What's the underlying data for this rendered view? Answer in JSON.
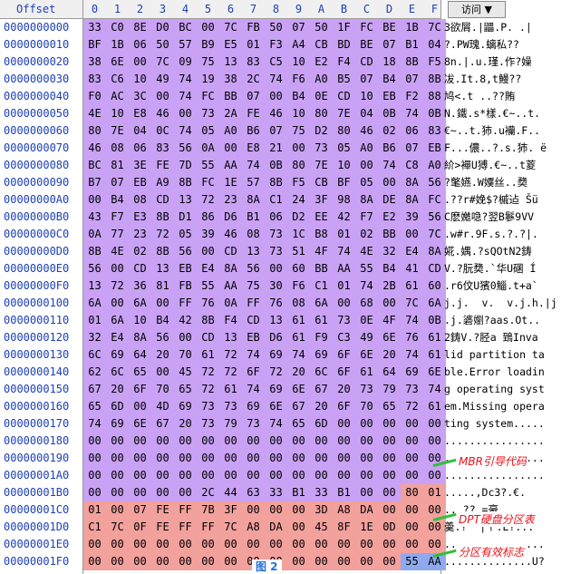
{
  "header": {
    "offset": "Offset",
    "columns": [
      "0",
      "1",
      "2",
      "3",
      "4",
      "5",
      "6",
      "7",
      "8",
      "9",
      "A",
      "B",
      "C",
      "D",
      "E",
      "F"
    ],
    "access": "访问 ▼"
  },
  "regions": [
    {
      "color": "#c9a2f5",
      "start": 0,
      "end": 445
    },
    {
      "color": "#f3a19d",
      "start": 446,
      "end": 509
    },
    {
      "color": "#8ea9ee",
      "start": 510,
      "end": 511
    }
  ],
  "rows": [
    {
      "offset": "0000000000",
      "bytes": [
        "33",
        "C0",
        "8E",
        "D0",
        "BC",
        "00",
        "7C",
        "FB",
        "50",
        "07",
        "50",
        "1F",
        "FC",
        "BE",
        "1B",
        "7C"
      ],
      "ascii": "3欲屑.|鼺.P. .|"
    },
    {
      "offset": "0000000010",
      "bytes": [
        "BF",
        "1B",
        "06",
        "50",
        "57",
        "B9",
        "E5",
        "01",
        "F3",
        "A4",
        "CB",
        "BD",
        "BE",
        "07",
        "B1",
        "04"
      ],
      "ascii": "?.PW瑰.螭私??"
    },
    {
      "offset": "0000000020",
      "bytes": [
        "38",
        "6E",
        "00",
        "7C",
        "09",
        "75",
        "13",
        "83",
        "C5",
        "10",
        "E2",
        "F4",
        "CD",
        "18",
        "8B",
        "F5"
      ],
      "ascii": "8n.|.u.瑾.作?嬠"
    },
    {
      "offset": "0000000030",
      "bytes": [
        "83",
        "C6",
        "10",
        "49",
        "74",
        "19",
        "38",
        "2C",
        "74",
        "F6",
        "A0",
        "B5",
        "07",
        "B4",
        "07",
        "8B"
      ],
      "ascii": "冹.It.8,t鰻??"
    },
    {
      "offset": "0000000040",
      "bytes": [
        "F0",
        "AC",
        "3C",
        "00",
        "74",
        "FC",
        "BB",
        "07",
        "00",
        "B4",
        "0E",
        "CD",
        "10",
        "EB",
        "F2",
        "88"
      ],
      "ascii": "鸠<.t ..??賄"
    },
    {
      "offset": "0000000050",
      "bytes": [
        "4E",
        "10",
        "E8",
        "46",
        "00",
        "73",
        "2A",
        "FE",
        "46",
        "10",
        "80",
        "7E",
        "04",
        "0B",
        "74",
        "0B"
      ],
      "ascii": "N.鐵.s*樣.€~..t."
    },
    {
      "offset": "0000000060",
      "bytes": [
        "80",
        "7E",
        "04",
        "0C",
        "74",
        "05",
        "A0",
        "B6",
        "07",
        "75",
        "D2",
        "80",
        "46",
        "02",
        "06",
        "83"
      ],
      "ascii": "€~..t.犻.u襽.F.."
    },
    {
      "offset": "0000000070",
      "bytes": [
        "46",
        "08",
        "06",
        "83",
        "56",
        "0A",
        "00",
        "E8",
        "21",
        "00",
        "73",
        "05",
        "A0",
        "B6",
        "07",
        "EB"
      ],
      "ascii": "F...儂..?.s.犻. ë"
    },
    {
      "offset": "0000000080",
      "bytes": [
        "BC",
        "81",
        "3E",
        "FE",
        "7D",
        "55",
        "AA",
        "74",
        "0B",
        "80",
        "7E",
        "10",
        "00",
        "74",
        "C8",
        "A0"
      ],
      "ascii": "紒>襌U猼.€~..t葼"
    },
    {
      "offset": "0000000090",
      "bytes": [
        "B7",
        "07",
        "EB",
        "A9",
        "8B",
        "FC",
        "1E",
        "57",
        "8B",
        "F5",
        "CB",
        "BF",
        "05",
        "00",
        "8A",
        "56"
      ],
      "ascii": "?氅嬿.W嬽丝..奦"
    },
    {
      "offset": "00000000A0",
      "bytes": [
        "00",
        "B4",
        "08",
        "CD",
        "13",
        "72",
        "23",
        "8A",
        "C1",
        "24",
        "3F",
        "98",
        "8A",
        "DE",
        "8A",
        "FC"
      ],
      "ascii": ".??r#娩$?槭迠 Šü"
    },
    {
      "offset": "00000000B0",
      "bytes": [
        "43",
        "F7",
        "E3",
        "8B",
        "D1",
        "86",
        "D6",
        "B1",
        "06",
        "D2",
        "EE",
        "42",
        "F7",
        "E2",
        "39",
        "56"
      ],
      "ascii": "C麽嬔喼?翌B鬖9VV"
    },
    {
      "offset": "00000000C0",
      "bytes": [
        "0A",
        "77",
        "23",
        "72",
        "05",
        "39",
        "46",
        "08",
        "73",
        "1C",
        "B8",
        "01",
        "02",
        "BB",
        "00",
        "7C"
      ],
      "ascii": ".w#r.9F.s.?.?|."
    },
    {
      "offset": "00000000D0",
      "bytes": [
        "8B",
        "4E",
        "02",
        "8B",
        "56",
        "00",
        "CD",
        "13",
        "73",
        "51",
        "4F",
        "74",
        "4E",
        "32",
        "E4",
        "8A"
      ],
      "ascii": "婲.媀.?sQOtN2鋳"
    },
    {
      "offset": "00000000E0",
      "bytes": [
        "56",
        "00",
        "CD",
        "13",
        "EB",
        "E4",
        "8A",
        "56",
        "00",
        "60",
        "BB",
        "AA",
        "55",
        "B4",
        "41",
        "CD"
      ],
      "ascii": "V.?朊奦.`华U碅 Í"
    },
    {
      "offset": "00000000F0",
      "bytes": [
        "13",
        "72",
        "36",
        "81",
        "FB",
        "55",
        "AA",
        "75",
        "30",
        "F6",
        "C1",
        "01",
        "74",
        "2B",
        "61",
        "60"
      ],
      "ascii": ".r6伩U獱0鯔.t+a`"
    },
    {
      "offset": "0000000100",
      "bytes": [
        "6A",
        "00",
        "6A",
        "00",
        "FF",
        "76",
        "0A",
        "FF",
        "76",
        "08",
        "6A",
        "00",
        "68",
        "00",
        "7C",
        "6A"
      ],
      "ascii": "j.j.  v.  v.j.h.|j"
    },
    {
      "offset": "0000000110",
      "bytes": [
        "01",
        "6A",
        "10",
        "B4",
        "42",
        "8B",
        "F4",
        "CD",
        "13",
        "61",
        "61",
        "73",
        "0E",
        "4F",
        "74",
        "0B"
      ],
      "ascii": ".j.碆嬼?aas.Ot.."
    },
    {
      "offset": "0000000120",
      "bytes": [
        "32",
        "E4",
        "8A",
        "56",
        "00",
        "CD",
        "13",
        "EB",
        "D6",
        "61",
        "F9",
        "C3",
        "49",
        "6E",
        "76",
        "61"
      ],
      "ascii": "2鋳V.?胫a 鵄Inva"
    },
    {
      "offset": "0000000130",
      "bytes": [
        "6C",
        "69",
        "64",
        "20",
        "70",
        "61",
        "72",
        "74",
        "69",
        "74",
        "69",
        "6F",
        "6E",
        "20",
        "74",
        "61"
      ],
      "ascii": "lid partition ta"
    },
    {
      "offset": "0000000140",
      "bytes": [
        "62",
        "6C",
        "65",
        "00",
        "45",
        "72",
        "72",
        "6F",
        "72",
        "20",
        "6C",
        "6F",
        "61",
        "64",
        "69",
        "6E"
      ],
      "ascii": "ble.Error loadin"
    },
    {
      "offset": "0000000150",
      "bytes": [
        "67",
        "20",
        "6F",
        "70",
        "65",
        "72",
        "61",
        "74",
        "69",
        "6E",
        "67",
        "20",
        "73",
        "79",
        "73",
        "74"
      ],
      "ascii": "g operating syst"
    },
    {
      "offset": "0000000160",
      "bytes": [
        "65",
        "6D",
        "00",
        "4D",
        "69",
        "73",
        "73",
        "69",
        "6E",
        "67",
        "20",
        "6F",
        "70",
        "65",
        "72",
        "61"
      ],
      "ascii": "em.Missing opera"
    },
    {
      "offset": "0000000170",
      "bytes": [
        "74",
        "69",
        "6E",
        "67",
        "20",
        "73",
        "79",
        "73",
        "74",
        "65",
        "6D",
        "00",
        "00",
        "00",
        "00",
        "00"
      ],
      "ascii": "ting system....."
    },
    {
      "offset": "0000000180",
      "bytes": [
        "00",
        "00",
        "00",
        "00",
        "00",
        "00",
        "00",
        "00",
        "00",
        "00",
        "00",
        "00",
        "00",
        "00",
        "00",
        "00"
      ],
      "ascii": "................"
    },
    {
      "offset": "0000000190",
      "bytes": [
        "00",
        "00",
        "00",
        "00",
        "00",
        "00",
        "00",
        "00",
        "00",
        "00",
        "00",
        "00",
        "00",
        "00",
        "00",
        "00"
      ],
      "ascii": "................"
    },
    {
      "offset": "00000001A0",
      "bytes": [
        "00",
        "00",
        "00",
        "00",
        "00",
        "00",
        "00",
        "00",
        "00",
        "00",
        "00",
        "00",
        "00",
        "00",
        "00",
        "00"
      ],
      "ascii": "................"
    },
    {
      "offset": "00000001B0",
      "bytes": [
        "00",
        "00",
        "00",
        "00",
        "00",
        "2C",
        "44",
        "63",
        "33",
        "B1",
        "33",
        "B1",
        "00",
        "00",
        "80",
        "01"
      ],
      "ascii": ".....,Dc3?.€."
    },
    {
      "offset": "00000001C0",
      "bytes": [
        "01",
        "00",
        "07",
        "FE",
        "FF",
        "7B",
        "3F",
        "00",
        "00",
        "00",
        "3D",
        "A8",
        "DA",
        "00",
        "00",
        "00"
      ],
      "ascii": "...??.=豪...."
    },
    {
      "offset": "00000001D0",
      "bytes": [
        "C1",
        "7C",
        "0F",
        "FE",
        "FF",
        "FF",
        "7C",
        "A8",
        "DA",
        "00",
        "45",
        "8F",
        "1E",
        "0D",
        "00",
        "00"
      ],
      "ascii": "羮.?  |ㄚ.E?..."
    },
    {
      "offset": "00000001E0",
      "bytes": [
        "00",
        "00",
        "00",
        "00",
        "00",
        "00",
        "00",
        "00",
        "00",
        "00",
        "00",
        "00",
        "00",
        "00",
        "00",
        "00"
      ],
      "ascii": "................"
    },
    {
      "offset": "00000001F0",
      "bytes": [
        "00",
        "00",
        "00",
        "00",
        "00",
        "00",
        "00",
        "00",
        "00",
        "00",
        "00",
        "00",
        "00",
        "00",
        "55",
        "AA"
      ],
      "ascii": "..............U?"
    }
  ],
  "annotations": [
    {
      "text": "MBR引导代码"
    },
    {
      "text": "DPT硬盘分区表"
    },
    {
      "text": "分区有效标志"
    }
  ],
  "caption": "图 2"
}
